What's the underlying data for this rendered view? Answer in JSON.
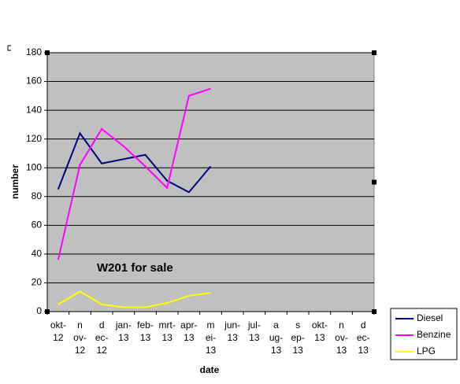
{
  "chart_data": {
    "type": "line",
    "categories": [
      "okt-12",
      "nov-12",
      "dec-12",
      "jan-13",
      "feb-13",
      "mrt-13",
      "apr-13",
      "mei-13",
      "jun-13",
      "jul-13",
      "aug-13",
      "sep-13",
      "okt-13",
      "nov-13",
      "dec-13"
    ],
    "series": [
      {
        "name": "Diesel",
        "color": "#000080",
        "values": [
          85,
          124,
          103,
          106,
          109,
          91,
          83,
          101,
          null,
          null,
          null,
          null,
          null,
          null,
          null
        ]
      },
      {
        "name": "Benzine",
        "color": "#ff00ff",
        "values": [
          36,
          102,
          127,
          115,
          101,
          86,
          150,
          155,
          null,
          null,
          null,
          null,
          null,
          null,
          null
        ]
      },
      {
        "name": "LPG",
        "color": "#ffff00",
        "values": [
          5,
          14,
          5,
          3,
          3,
          6,
          11,
          13,
          null,
          null,
          null,
          null,
          null,
          null,
          null
        ]
      }
    ],
    "ylim": [
      0,
      180
    ],
    "yticks": [
      0,
      20,
      40,
      60,
      80,
      100,
      120,
      140,
      160,
      180
    ],
    "xlabel": "date",
    "ylabel": "number",
    "annotation": "W201 for sale",
    "grid": true,
    "background": "#c0c0c0",
    "legend": "lower right"
  }
}
